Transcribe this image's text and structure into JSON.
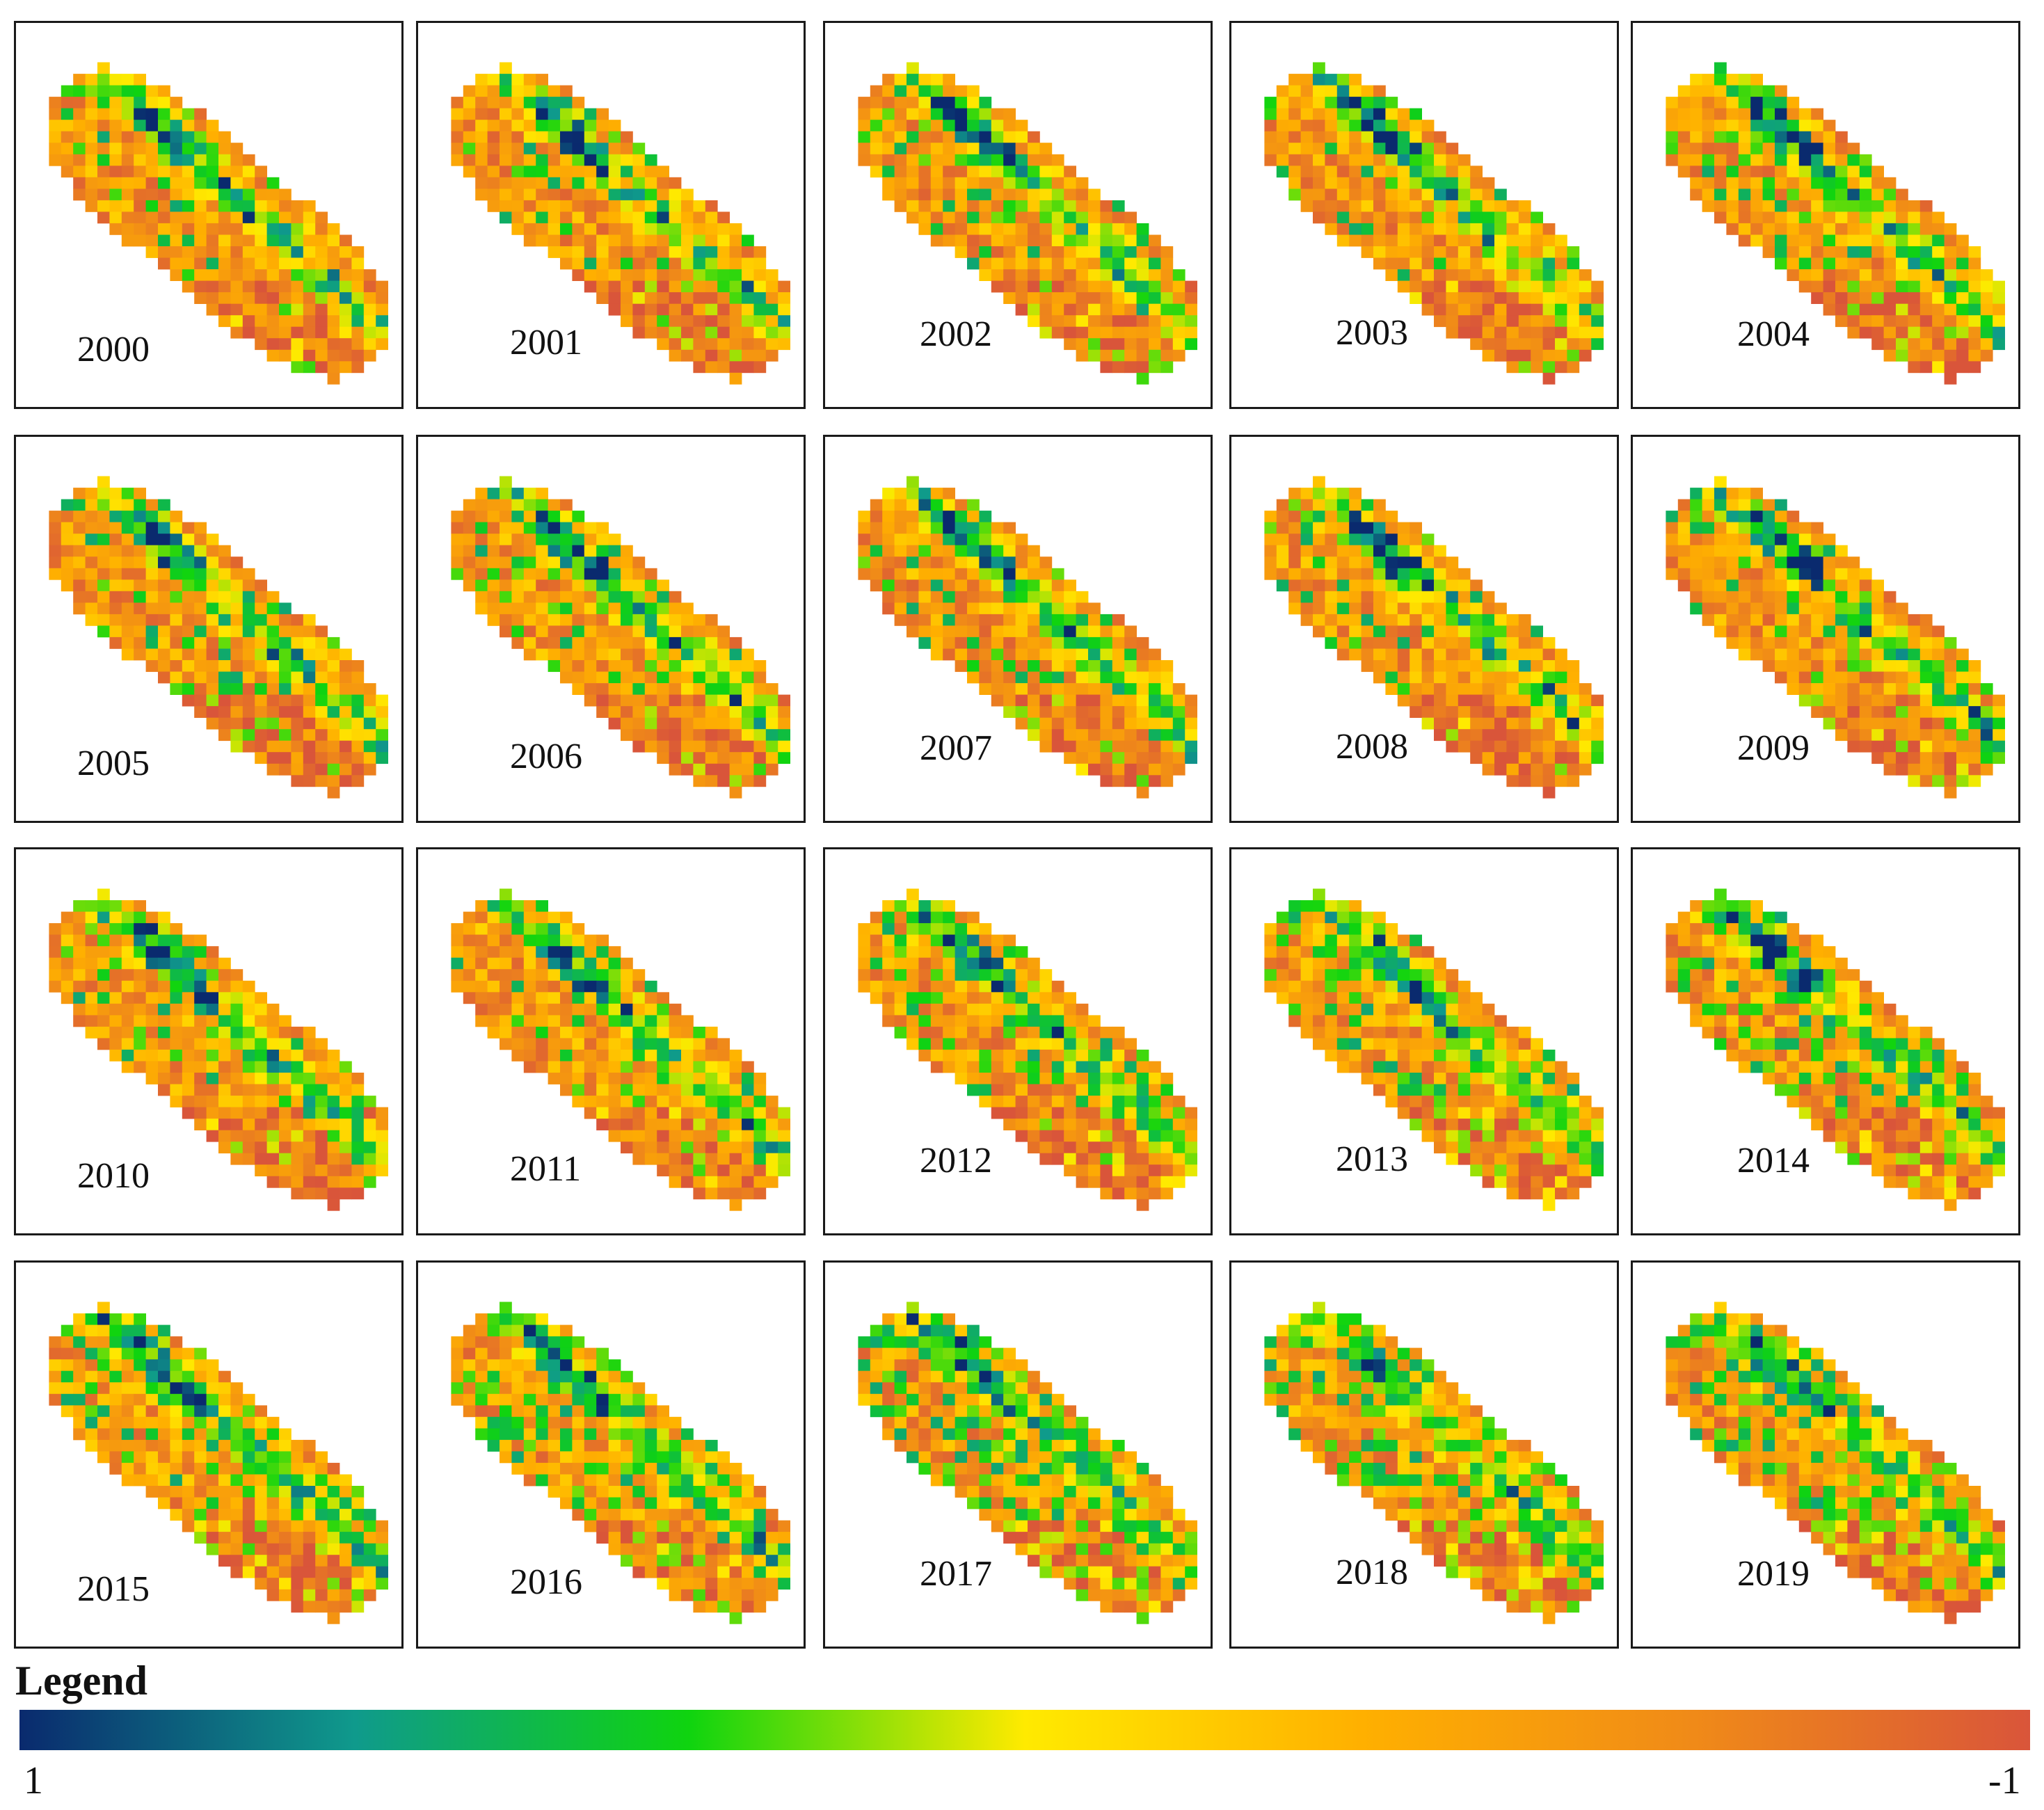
{
  "panels": [
    {
      "year": "2000",
      "green": 0.0,
      "seed": 11
    },
    {
      "year": "2001",
      "green": 0.02,
      "seed": 23
    },
    {
      "year": "2002",
      "green": 0.06,
      "seed": 37
    },
    {
      "year": "2003",
      "green": 0.05,
      "seed": 41
    },
    {
      "year": "2004",
      "green": 0.08,
      "seed": 53
    },
    {
      "year": "2005",
      "green": 0.03,
      "seed": 67
    },
    {
      "year": "2006",
      "green": 0.03,
      "seed": 71
    },
    {
      "year": "2007",
      "green": 0.05,
      "seed": 83
    },
    {
      "year": "2008",
      "green": 0.05,
      "seed": 97
    },
    {
      "year": "2009",
      "green": 0.07,
      "seed": 101
    },
    {
      "year": "2010",
      "green": 0.07,
      "seed": 113
    },
    {
      "year": "2011",
      "green": 0.04,
      "seed": 127
    },
    {
      "year": "2012",
      "green": 0.08,
      "seed": 131
    },
    {
      "year": "2013",
      "green": 0.12,
      "seed": 149
    },
    {
      "year": "2014",
      "green": 0.1,
      "seed": 151
    },
    {
      "year": "2015",
      "green": 0.1,
      "seed": 163
    },
    {
      "year": "2016",
      "green": 0.16,
      "seed": 173
    },
    {
      "year": "2017",
      "green": 0.22,
      "seed": 181
    },
    {
      "year": "2018",
      "green": 0.2,
      "seed": 191
    },
    {
      "year": "2019",
      "green": 0.2,
      "seed": 197
    }
  ],
  "legend": {
    "title": "Legend",
    "max_label": "1",
    "min_label": "-1",
    "color_stops": [
      "#0a2a6e",
      "#0f9a8c",
      "#0fd40f",
      "#ffea00",
      "#ffb000",
      "#f08a18",
      "#d9553a"
    ]
  }
}
